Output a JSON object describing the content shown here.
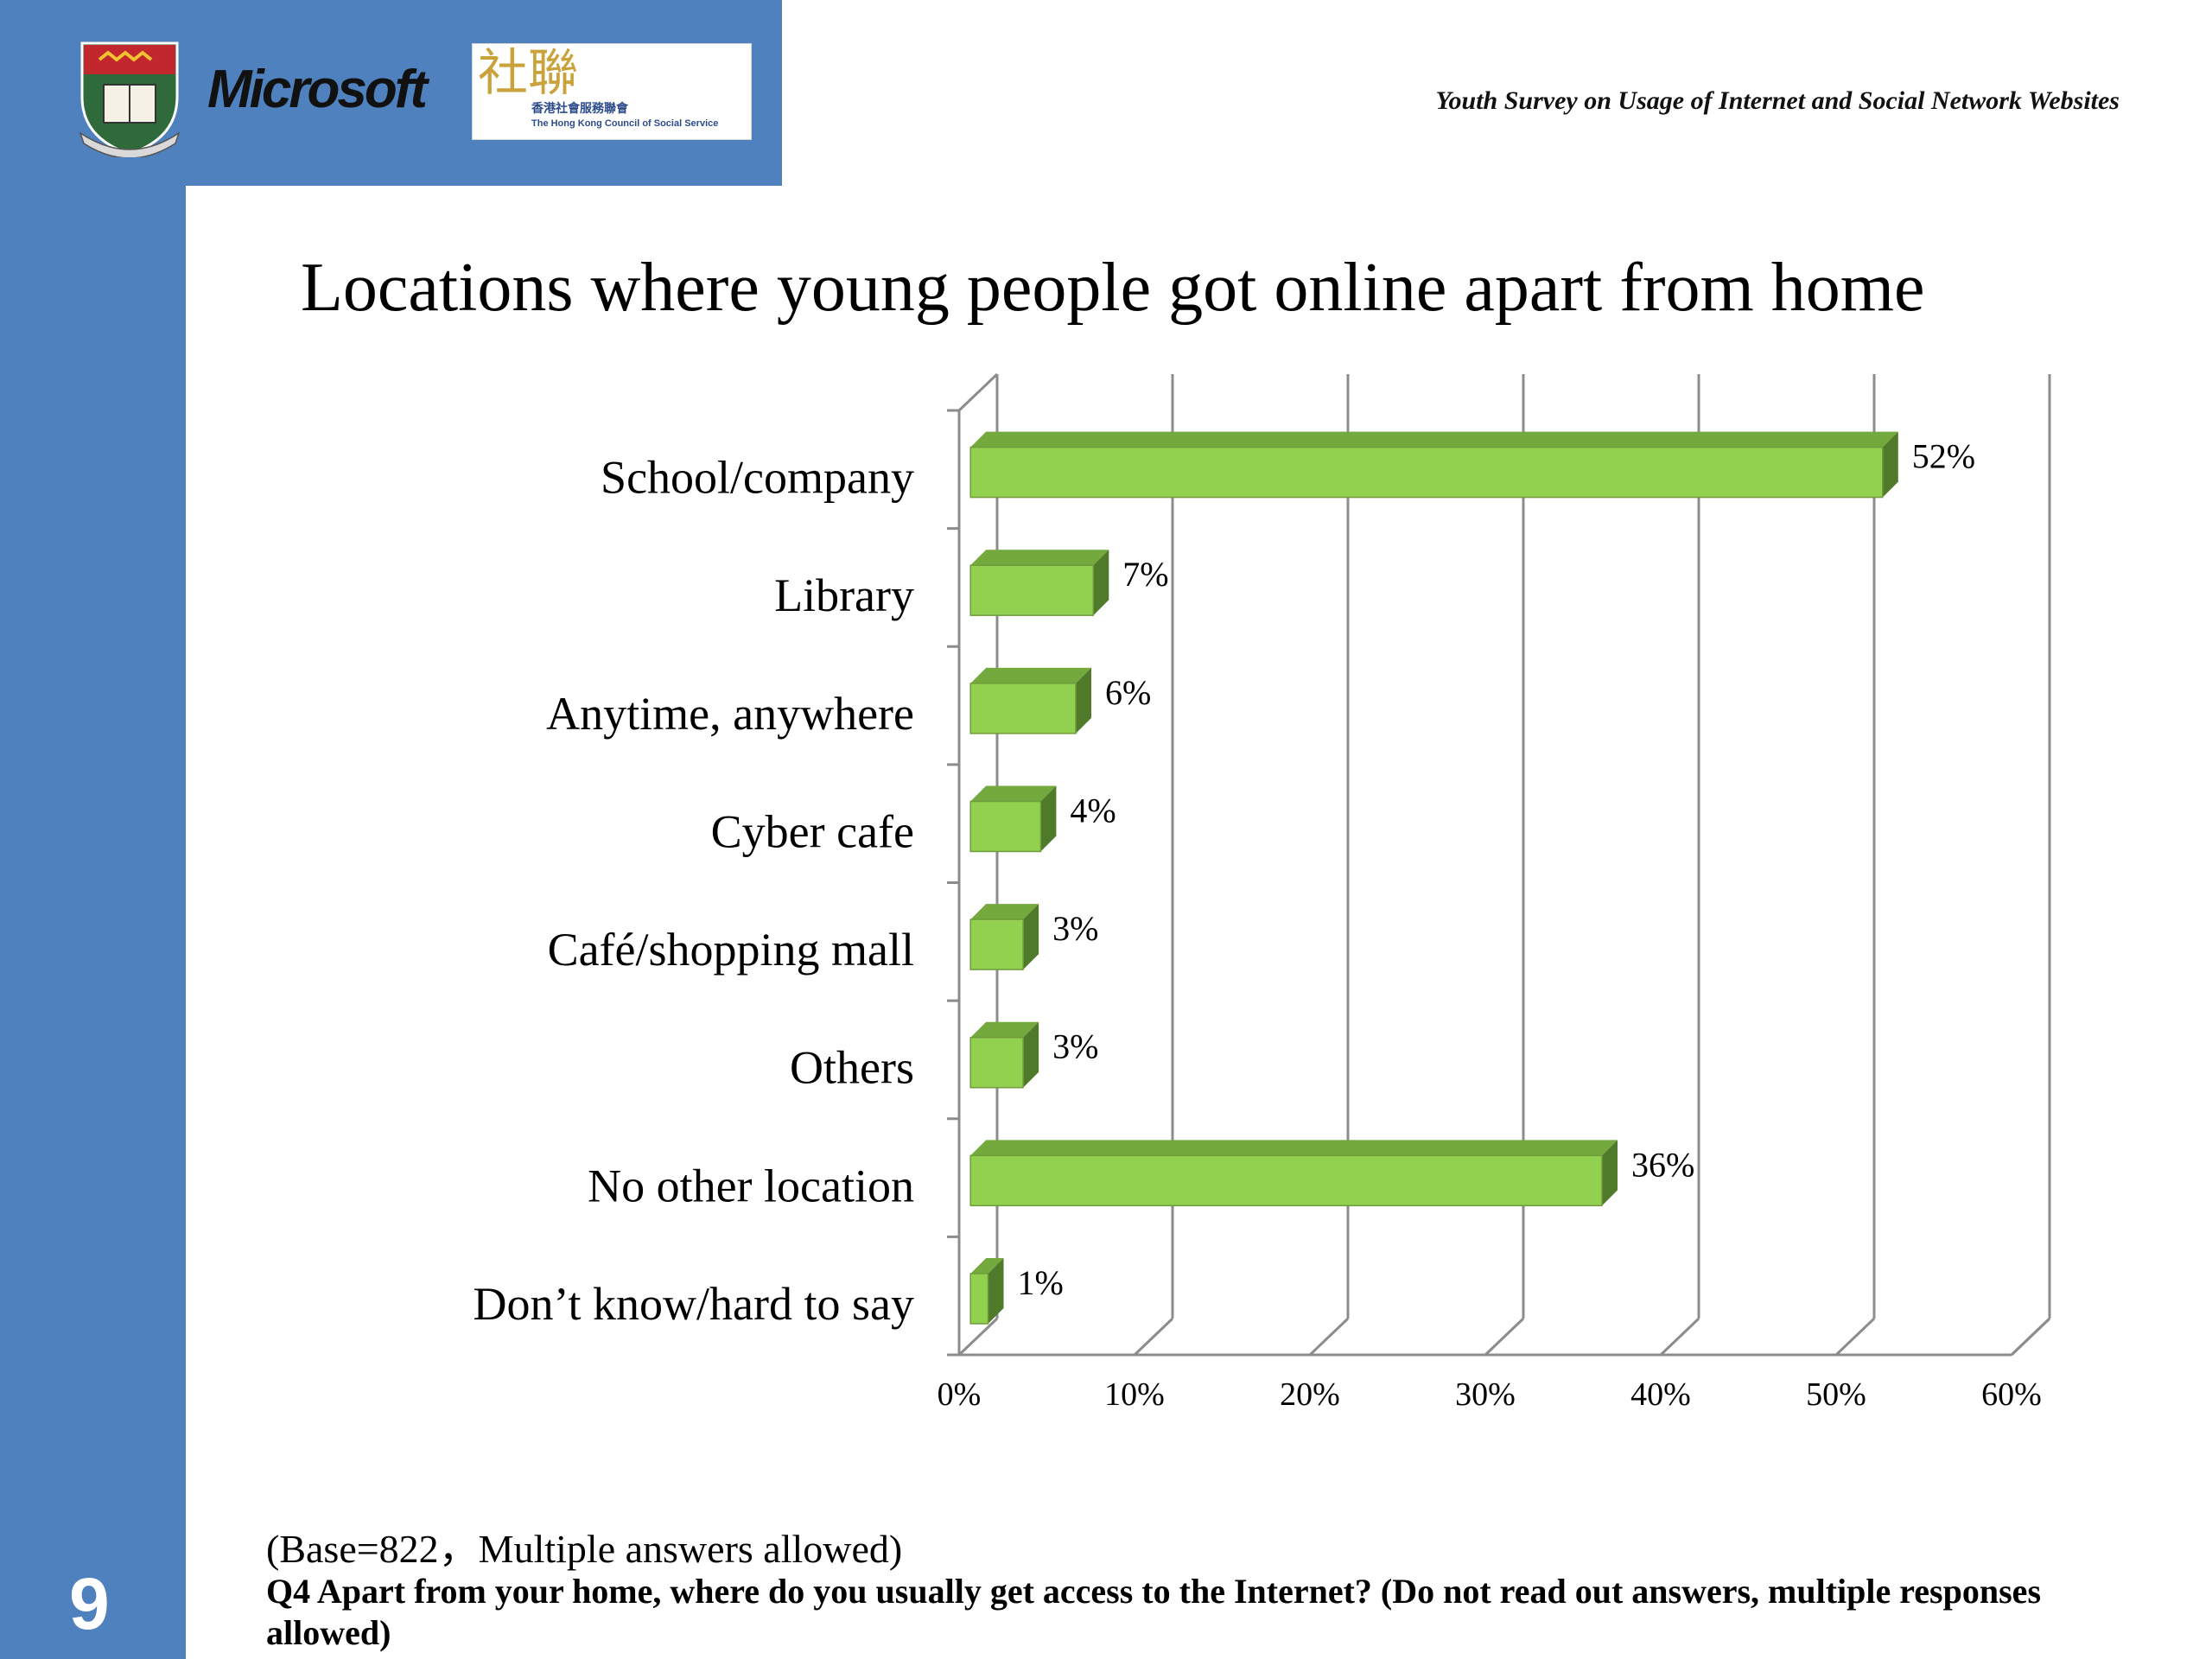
{
  "header": {
    "microsoft_logo_text": "Microsoft",
    "survey_title": "Youth Survey on Usage of Internet and Social Network Websites"
  },
  "hkcss_logo": {
    "glyph": "社聯",
    "name_zh": "香港社會服務聯會",
    "name_en": "The Hong Kong Council of Social Service"
  },
  "slide": {
    "page_number": "9",
    "base_note": "(Base=822，Multiple answers allowed)",
    "question": "Q4  Apart from your home, where do you usually get access to the Internet? (Do not read out answers, multiple responses allowed)"
  },
  "colors": {
    "sidebar_blue": "#4e81bd",
    "bar_front": "#92d050",
    "bar_top": "#74a93e",
    "bar_side": "#4f7a2a",
    "gridline": "#8c8c8c"
  },
  "chart_data": {
    "type": "bar",
    "orientation": "horizontal",
    "style": "3d-clustered",
    "title": "Locations where young people got online apart from home",
    "categories": [
      "School/company",
      "Library",
      "Anytime, anywhere",
      "Cyber cafe",
      "Café/shopping mall",
      "Others",
      "No other location",
      "Don’t know/hard to say"
    ],
    "values": [
      52,
      7,
      6,
      4,
      3,
      3,
      36,
      1
    ],
    "data_labels": [
      "52%",
      "7%",
      "6%",
      "4%",
      "3%",
      "3%",
      "36%",
      "1%"
    ],
    "x_ticks": [
      "0%",
      "10%",
      "20%",
      "30%",
      "40%",
      "50%",
      "60%"
    ],
    "xlim": [
      0,
      60
    ],
    "grid": true,
    "legend": "none"
  }
}
